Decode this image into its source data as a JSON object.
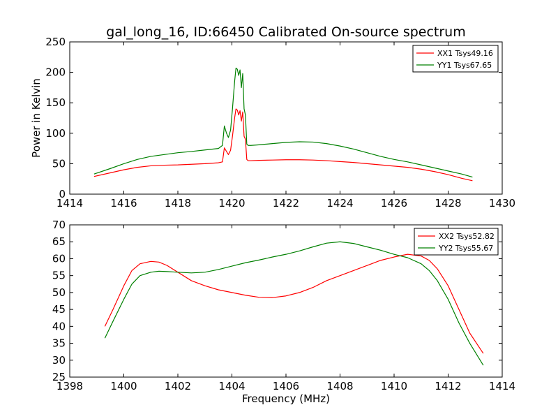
{
  "figure_title": "gal_long_16, ID:66450 Calibrated On-source spectrum",
  "chart_data": [
    {
      "type": "line",
      "title": "gal_long_16, ID:66450 Calibrated On-source spectrum",
      "xlabel": "",
      "ylabel": "Power in Kelvin",
      "xlim": [
        1414,
        1430
      ],
      "ylim": [
        0,
        250
      ],
      "xticks": [
        "1414",
        "1416",
        "1418",
        "1420",
        "1422",
        "1424",
        "1426",
        "1428",
        "1430"
      ],
      "yticks": [
        "0",
        "50",
        "100",
        "150",
        "200",
        "250"
      ],
      "grid": false,
      "legend_position": "top-right",
      "series": [
        {
          "name": "XX1 Tsys49.16",
          "color": "#ff0000",
          "x": [
            1414.9,
            1415.5,
            1416.0,
            1416.5,
            1417.0,
            1417.5,
            1418.0,
            1418.5,
            1419.0,
            1419.5,
            1419.65,
            1419.72,
            1419.8,
            1419.87,
            1419.95,
            1420.02,
            1420.1,
            1420.15,
            1420.2,
            1420.25,
            1420.3,
            1420.35,
            1420.4,
            1420.45,
            1420.5,
            1420.55,
            1420.6,
            1420.7,
            1421.0,
            1421.5,
            1422.0,
            1422.5,
            1423.0,
            1423.5,
            1424.0,
            1424.5,
            1425.0,
            1425.5,
            1426.0,
            1426.5,
            1427.0,
            1427.5,
            1428.0,
            1428.5,
            1428.9
          ],
          "values": [
            29,
            35,
            40,
            44,
            46.5,
            47.5,
            48,
            49,
            50,
            51.5,
            53,
            76,
            70,
            65,
            72,
            95,
            125,
            140,
            138,
            130,
            137,
            120,
            135,
            95,
            90,
            57,
            55,
            55,
            55.5,
            56,
            56.5,
            56.5,
            56,
            55,
            53.5,
            52,
            50,
            48,
            46,
            44,
            41,
            37,
            32,
            26,
            22
          ]
        },
        {
          "name": "YY1 Tsys67.65",
          "color": "#008000",
          "x": [
            1414.9,
            1415.5,
            1416.0,
            1416.5,
            1417.0,
            1417.5,
            1418.0,
            1418.5,
            1419.0,
            1419.5,
            1419.65,
            1419.72,
            1419.8,
            1419.87,
            1419.95,
            1420.02,
            1420.1,
            1420.15,
            1420.2,
            1420.25,
            1420.3,
            1420.35,
            1420.4,
            1420.45,
            1420.5,
            1420.55,
            1420.6,
            1420.7,
            1421.0,
            1421.5,
            1422.0,
            1422.5,
            1423.0,
            1423.5,
            1424.0,
            1424.5,
            1425.0,
            1425.5,
            1426.0,
            1426.5,
            1427.0,
            1427.5,
            1428.0,
            1428.5,
            1428.9
          ],
          "values": [
            33,
            42,
            50,
            57,
            62,
            65,
            68,
            70,
            72.5,
            75,
            80,
            112,
            100,
            93,
            105,
            140,
            185,
            207,
            205,
            195,
            204,
            175,
            198,
            140,
            130,
            82,
            80,
            80,
            81,
            83,
            85,
            86,
            85.5,
            83,
            79,
            74,
            68,
            62,
            57,
            53,
            48,
            43,
            38,
            33,
            28
          ]
        }
      ]
    },
    {
      "type": "line",
      "title": "",
      "xlabel": "Frequency (MHz)",
      "ylabel": "",
      "xlim": [
        1398,
        1414
      ],
      "ylim": [
        25,
        70
      ],
      "xticks": [
        "1398",
        "1400",
        "1402",
        "1404",
        "1406",
        "1408",
        "1410",
        "1412",
        "1414"
      ],
      "yticks": [
        "25",
        "30",
        "35",
        "40",
        "45",
        "50",
        "55",
        "60",
        "65",
        "70"
      ],
      "grid": false,
      "legend_position": "top-right",
      "series": [
        {
          "name": "XX2 Tsys52.82",
          "color": "#ff0000",
          "x": [
            1399.3,
            1399.6,
            1400.0,
            1400.3,
            1400.6,
            1401.0,
            1401.3,
            1401.6,
            1402.0,
            1402.5,
            1403.0,
            1403.5,
            1404.0,
            1404.5,
            1405.0,
            1405.5,
            1406.0,
            1406.5,
            1407.0,
            1407.5,
            1408.0,
            1408.5,
            1409.0,
            1409.5,
            1410.0,
            1410.5,
            1411.0,
            1411.3,
            1411.6,
            1412.0,
            1412.4,
            1412.8,
            1413.3
          ],
          "values": [
            40,
            45,
            52,
            56.5,
            58.5,
            59.2,
            59,
            58,
            56,
            53.5,
            52,
            50.8,
            50,
            49.2,
            48.6,
            48.5,
            49,
            50,
            51.5,
            53.5,
            55,
            56.5,
            58,
            59.5,
            60.5,
            61.3,
            60.8,
            59.5,
            57,
            52,
            45,
            38,
            32
          ]
        },
        {
          "name": "YY2 Tsys55.67",
          "color": "#008000",
          "x": [
            1399.3,
            1399.6,
            1400.0,
            1400.3,
            1400.6,
            1401.0,
            1401.3,
            1401.6,
            1402.0,
            1402.5,
            1403.0,
            1403.5,
            1404.0,
            1404.5,
            1405.0,
            1405.5,
            1406.0,
            1406.5,
            1407.0,
            1407.5,
            1408.0,
            1408.5,
            1409.0,
            1409.5,
            1410.0,
            1410.5,
            1411.0,
            1411.3,
            1411.6,
            1412.0,
            1412.4,
            1412.8,
            1413.3
          ],
          "values": [
            36.5,
            41.5,
            48,
            52.5,
            55,
            56,
            56.3,
            56.2,
            56,
            55.8,
            56,
            56.8,
            57.8,
            58.8,
            59.6,
            60.5,
            61.3,
            62.3,
            63.5,
            64.6,
            65,
            64.5,
            63.5,
            62.5,
            61.3,
            60.3,
            58.5,
            56.5,
            53.5,
            48,
            41,
            35,
            28.5
          ]
        }
      ]
    }
  ]
}
